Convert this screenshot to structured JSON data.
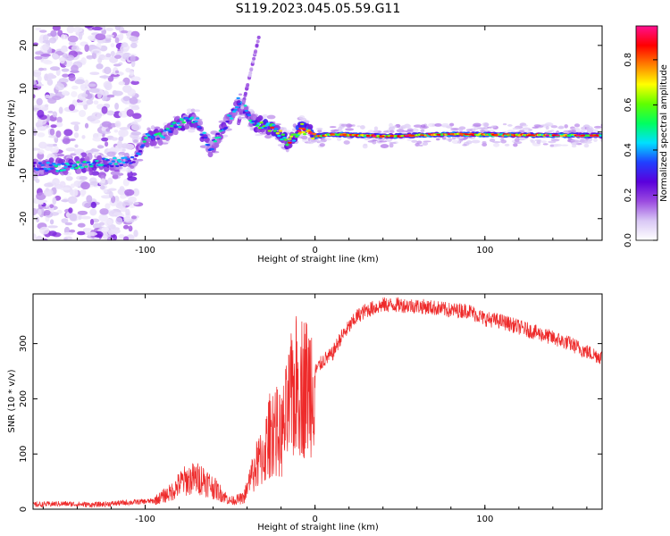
{
  "title": "S119.2023.045.05.59.G11",
  "chart_data": [
    {
      "type": "heatmap",
      "xlabel": "Height of straight line (km)",
      "ylabel": "Frequency (Hz)",
      "xlim": [
        -166,
        169
      ],
      "ylim": [
        -25,
        24.5
      ],
      "xticks": [
        -100,
        0,
        100
      ],
      "xtick_labels": [
        "-100",
        "0",
        "100"
      ],
      "yticks": [
        -20,
        -10,
        0,
        10,
        20
      ],
      "ytick_labels": [
        "-20",
        "-10",
        "0",
        "10",
        "20"
      ],
      "colorbar": {
        "label": "Normalized spectral amplitude",
        "range": [
          0,
          0.95
        ],
        "ticks": [
          0,
          0.2,
          0.4,
          0.6,
          0.8
        ],
        "tick_labels": [
          "0.0",
          "0.2",
          "0.4",
          "0.6",
          "0.8"
        ],
        "colormap": [
          "#ffffff",
          "#d9c8f5",
          "#9b4be0",
          "#5a00dc",
          "#2040ff",
          "#00e0ff",
          "#00ff60",
          "#60ff00",
          "#ffff00",
          "#ff8000",
          "#ff0000",
          "#ff1090"
        ]
      },
      "ridge": [
        {
          "x": -166,
          "f": -8,
          "a": 0.35
        },
        {
          "x": -150,
          "f": -8,
          "a": 0.45
        },
        {
          "x": -135,
          "f": -7.5,
          "a": 0.45
        },
        {
          "x": -120,
          "f": -7,
          "a": 0.45
        },
        {
          "x": -106,
          "f": -6.5,
          "a": 0.3
        },
        {
          "x": -100,
          "f": -1.5,
          "a": 0.5
        },
        {
          "x": -90,
          "f": -1,
          "a": 0.45
        },
        {
          "x": -80,
          "f": 2,
          "a": 0.5
        },
        {
          "x": -70,
          "f": 3,
          "a": 0.45
        },
        {
          "x": -62,
          "f": -4,
          "a": 0.4
        },
        {
          "x": -55,
          "f": 0,
          "a": 0.45
        },
        {
          "x": -45,
          "f": 7,
          "a": 0.45
        },
        {
          "x": -35,
          "f": 2,
          "a": 0.5
        },
        {
          "x": -25,
          "f": 1,
          "a": 0.65
        },
        {
          "x": -15,
          "f": -2.5,
          "a": 0.6
        },
        {
          "x": -8,
          "f": 1,
          "a": 0.7
        },
        {
          "x": 0,
          "f": -1,
          "a": 0.75
        },
        {
          "x": 10,
          "f": -0.5,
          "a": 0.75
        },
        {
          "x": 40,
          "f": -1,
          "a": 0.75
        },
        {
          "x": 80,
          "f": -0.5,
          "a": 0.8
        },
        {
          "x": 120,
          "f": -0.7,
          "a": 0.75
        },
        {
          "x": 169,
          "f": -0.8,
          "a": 0.7
        }
      ]
    },
    {
      "type": "line",
      "xlabel": "Height of straight line (km)",
      "ylabel": "SNR (10 * v/v)",
      "xlim": [
        -166,
        169
      ],
      "ylim": [
        0,
        390
      ],
      "xticks": [
        -100,
        0,
        100
      ],
      "xtick_labels": [
        "-100",
        "0",
        "100"
      ],
      "yticks": [
        0,
        100,
        200,
        300
      ],
      "ytick_labels": [
        "0",
        "100",
        "200",
        "300"
      ],
      "series_color": "#ee2a2a",
      "envelope_x": [
        -166,
        -150,
        -130,
        -110,
        -95,
        -85,
        -78,
        -72,
        -66,
        -60,
        -50,
        -42,
        -36,
        -30,
        -25,
        -20,
        -14,
        -10,
        -4,
        0,
        5,
        10,
        15,
        20,
        25,
        30,
        40,
        50,
        60,
        70,
        80,
        90,
        100,
        110,
        120,
        130,
        140,
        150,
        160,
        169
      ],
      "envelope_y": [
        8,
        10,
        8,
        12,
        15,
        30,
        50,
        55,
        55,
        40,
        15,
        20,
        70,
        100,
        150,
        130,
        200,
        230,
        220,
        250,
        270,
        280,
        310,
        330,
        350,
        360,
        370,
        370,
        368,
        365,
        360,
        360,
        345,
        340,
        330,
        320,
        310,
        300,
        285,
        275
      ]
    }
  ]
}
